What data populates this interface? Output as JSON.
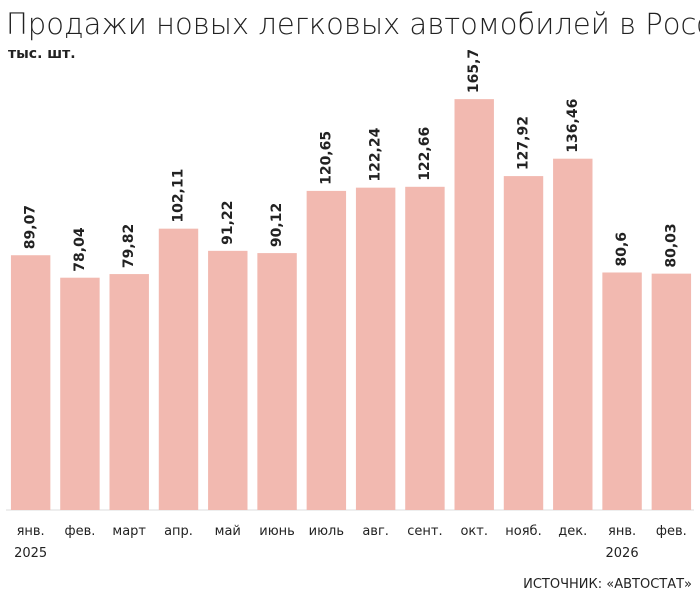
{
  "chart_data": {
    "type": "bar",
    "title": "Продажи новых легковых автомобилей в России",
    "subtitle": "тыс. шт.",
    "source": "ИСТОЧНИК: «АВТОСТАТ»",
    "categories": [
      "янв.",
      "фев.",
      "март",
      "апр.",
      "май",
      "июнь",
      "июль",
      "авг.",
      "сент.",
      "окт.",
      "нояб.",
      "дек.",
      "янв.",
      "фев."
    ],
    "years": [
      "2025",
      null,
      null,
      null,
      null,
      null,
      null,
      null,
      null,
      null,
      null,
      null,
      "2026",
      null
    ],
    "values": [
      89.07,
      78.04,
      79.82,
      102.11,
      91.22,
      90.12,
      120.65,
      122.24,
      122.66,
      165.7,
      127.92,
      136.46,
      80.6,
      80.03
    ],
    "value_labels": [
      "89,07",
      "78,04",
      "79,82",
      "102,11",
      "91,22",
      "90,12",
      "120,65",
      "122,24",
      "122,66",
      "165,7",
      "127,92",
      "136,46",
      "80,6",
      "80,03"
    ],
    "color": "#f2b9b0",
    "ylim": [
      -36,
      180
    ]
  }
}
